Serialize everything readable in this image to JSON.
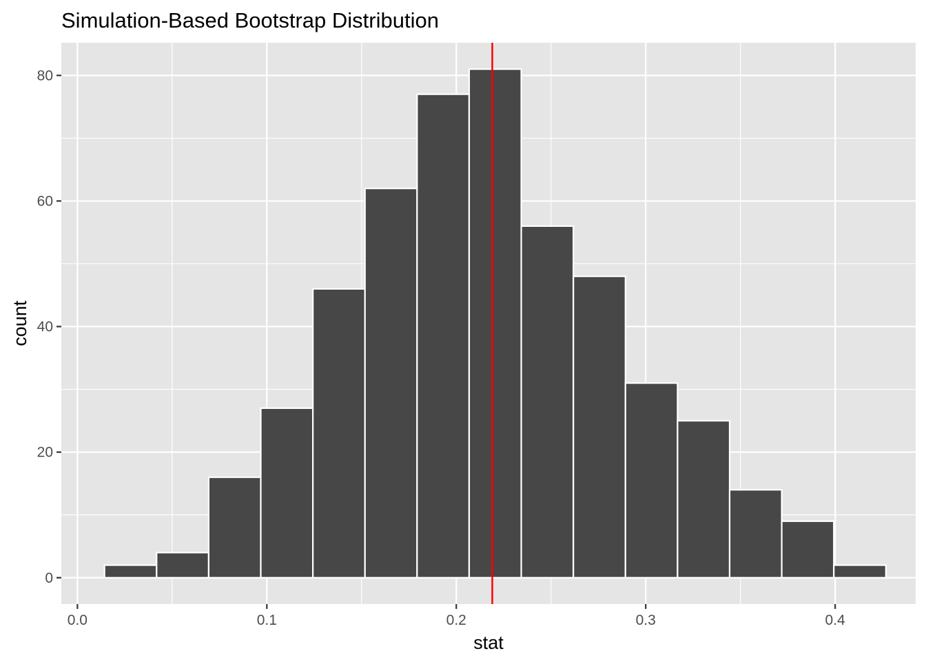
{
  "chart_data": {
    "type": "bar",
    "title": "Simulation-Based Bootstrap Distribution",
    "xlabel": "stat",
    "ylabel": "count",
    "xlim": [
      -0.0085,
      0.4425
    ],
    "ylim": [
      -4.2,
      85.2
    ],
    "x_ticks": [
      0.0,
      0.1,
      0.2,
      0.3,
      0.4
    ],
    "x_tick_labels": [
      "0.0",
      "0.1",
      "0.2",
      "0.3",
      "0.4"
    ],
    "y_ticks": [
      0,
      20,
      40,
      60,
      80
    ],
    "y_tick_labels": [
      "0",
      "20",
      "40",
      "60",
      "80"
    ],
    "bin_width": 0.0275,
    "bins": [
      {
        "x_start": 0.0143,
        "x_end": 0.0418,
        "count": 2
      },
      {
        "x_start": 0.0418,
        "x_end": 0.0693,
        "count": 4
      },
      {
        "x_start": 0.0693,
        "x_end": 0.0968,
        "count": 16
      },
      {
        "x_start": 0.0968,
        "x_end": 0.1243,
        "count": 27
      },
      {
        "x_start": 0.1243,
        "x_end": 0.1518,
        "count": 46
      },
      {
        "x_start": 0.1518,
        "x_end": 0.1793,
        "count": 62
      },
      {
        "x_start": 0.1793,
        "x_end": 0.2068,
        "count": 77
      },
      {
        "x_start": 0.2068,
        "x_end": 0.2343,
        "count": 81
      },
      {
        "x_start": 0.2343,
        "x_end": 0.2618,
        "count": 56
      },
      {
        "x_start": 0.2618,
        "x_end": 0.2893,
        "count": 48
      },
      {
        "x_start": 0.2893,
        "x_end": 0.3168,
        "count": 31
      },
      {
        "x_start": 0.3168,
        "x_end": 0.3443,
        "count": 25
      },
      {
        "x_start": 0.3443,
        "x_end": 0.3718,
        "count": 14
      },
      {
        "x_start": 0.3718,
        "x_end": 0.3993,
        "count": 9
      },
      {
        "x_start": 0.3993,
        "x_end": 0.4268,
        "count": 2
      }
    ],
    "vline": {
      "x": 0.219,
      "color": "#ff0000"
    },
    "bar_fill": "#474747",
    "bar_outline": "#ffffff",
    "panel_background": "#e5e5e5",
    "grid": true,
    "legend": "none"
  }
}
